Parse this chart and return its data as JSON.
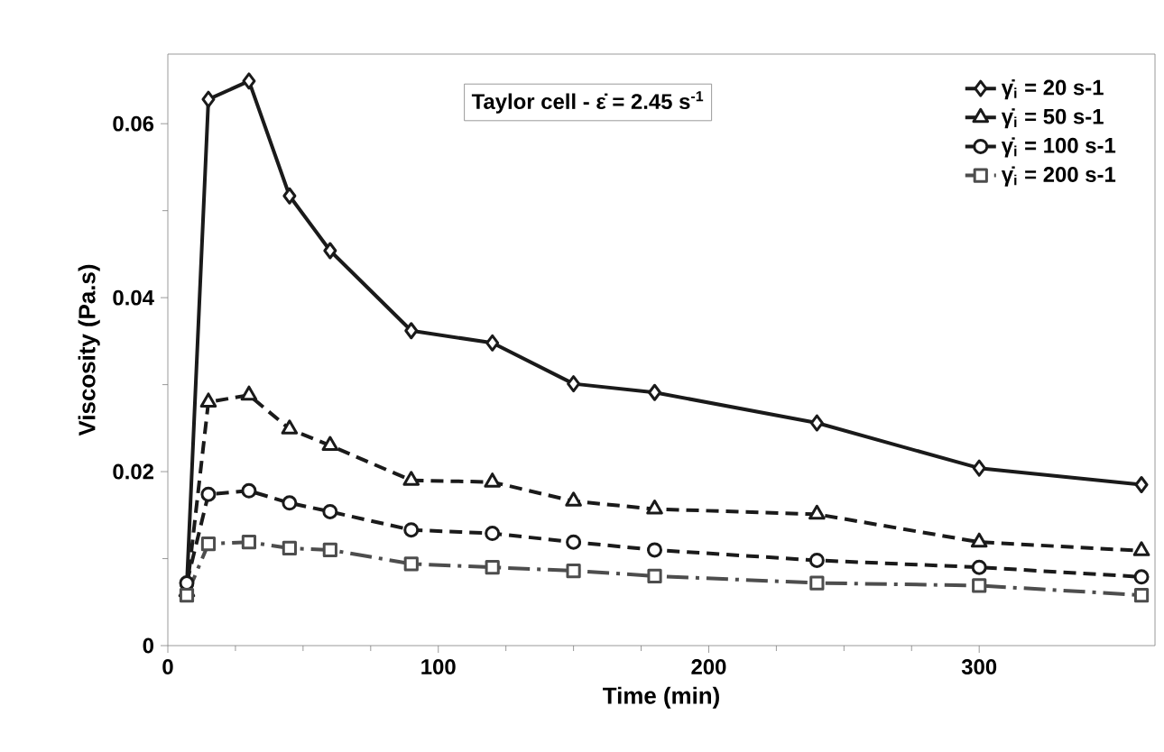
{
  "chart_data": {
    "type": "line",
    "xlabel": "Time (min)",
    "ylabel": "Viscosity (Pa.s)",
    "annotations": [
      "Taylor cell  -  ε̇ = 2.45 s$^{-1}$"
    ],
    "x": [
      7,
      15,
      30,
      45,
      60,
      90,
      120,
      150,
      180,
      240,
      300,
      360
    ],
    "series": [
      {
        "name": "γ̇$_{i}$  = 20 s-1",
        "color": "#1a1a1a",
        "marker": "diamond",
        "line_style": "solid",
        "values": [
          0.0068,
          0.0628,
          0.0649,
          0.0517,
          0.0454,
          0.0362,
          0.0348,
          0.0301,
          0.0291,
          0.0256,
          0.0204,
          0.0185
        ]
      },
      {
        "name": "γ̇$_{i}$  = 50 s-1",
        "color": "#1a1a1a",
        "marker": "triangle",
        "line_style": "dashed",
        "values": [
          0.0062,
          0.028,
          0.0288,
          0.0249,
          0.023,
          0.019,
          0.0188,
          0.0166,
          0.0157,
          0.0151,
          0.0119,
          0.0109
        ]
      },
      {
        "name": "γ̇$_{i}$  = 100 s-1",
        "color": "#1a1a1a",
        "marker": "circle",
        "line_style": "dashed",
        "values": [
          0.0072,
          0.0174,
          0.0178,
          0.0164,
          0.0154,
          0.0133,
          0.0129,
          0.0119,
          0.011,
          0.0098,
          0.009,
          0.0079
        ]
      },
      {
        "name": "γ̇$_{i}$  = 200 s-1",
        "color": "#4d4d4d",
        "marker": "square",
        "line_style": "dashdot",
        "values": [
          0.0058,
          0.0117,
          0.0119,
          0.0112,
          0.011,
          0.0094,
          0.009,
          0.0086,
          0.008,
          0.0072,
          0.0069,
          0.0058
        ]
      }
    ],
    "xlim": [
      0,
      365
    ],
    "ylim": [
      0,
      0.068
    ],
    "xticks": [
      0,
      100,
      200,
      300
    ],
    "yticks": [
      0,
      0.02,
      0.04,
      0.06
    ],
    "grid": false,
    "legend": "top right"
  }
}
